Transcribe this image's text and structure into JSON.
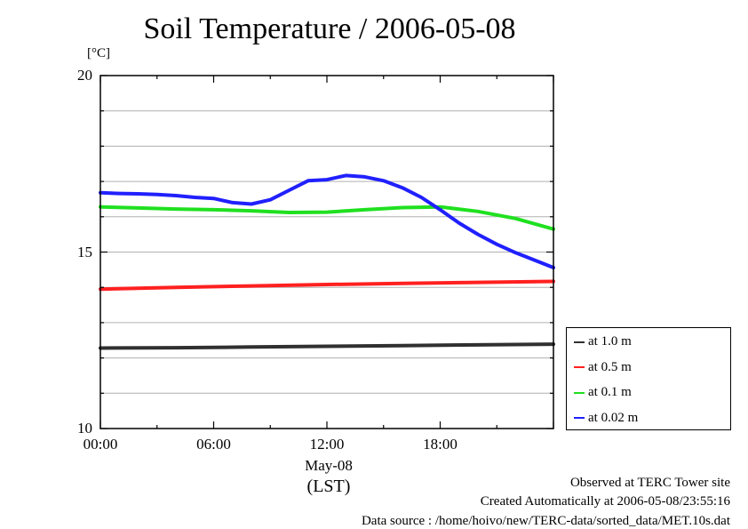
{
  "chart_data": {
    "type": "line",
    "title": "Soil Temperature / 2006-05-08",
    "ylabel": "[°C]",
    "xlabel": "(LST)",
    "date_label": "May-08",
    "ylim": [
      10,
      20
    ],
    "xlim": [
      0,
      24
    ],
    "y_ticks": [
      {
        "value": 10,
        "label": "10"
      },
      {
        "value": 15,
        "label": "15"
      },
      {
        "value": 20,
        "label": "20"
      }
    ],
    "y_grid": [
      11,
      12,
      13,
      14,
      16,
      17,
      18,
      19
    ],
    "x_ticks": [
      {
        "value": 0,
        "label": "00:00"
      },
      {
        "value": 6,
        "label": "06:00"
      },
      {
        "value": 12,
        "label": "12:00"
      },
      {
        "value": 18,
        "label": "18:00"
      }
    ],
    "grid": true,
    "legend_position": "right",
    "series": [
      {
        "name": "at 1.0 m",
        "color": "#303030",
        "x": [
          0,
          4,
          8,
          12,
          16,
          20,
          24
        ],
        "y": [
          12.28,
          12.29,
          12.31,
          12.33,
          12.35,
          12.37,
          12.39
        ]
      },
      {
        "name": "at 0.5 m",
        "color": "#ff2020",
        "x": [
          0,
          4,
          8,
          12,
          16,
          20,
          24
        ],
        "y": [
          13.95,
          14.0,
          14.04,
          14.08,
          14.11,
          14.14,
          14.17
        ]
      },
      {
        "name": "at 0.1 m",
        "color": "#20e020",
        "x": [
          0,
          2,
          4,
          6,
          8,
          10,
          12,
          14,
          16,
          18,
          20,
          22,
          24
        ],
        "y": [
          16.28,
          16.25,
          16.22,
          16.2,
          16.17,
          16.12,
          16.13,
          16.2,
          16.26,
          16.28,
          16.15,
          15.95,
          15.65
        ]
      },
      {
        "name": "at 0.02 m",
        "color": "#2020ff",
        "x": [
          0,
          1,
          2,
          3,
          4,
          5,
          6,
          7,
          8,
          9,
          10,
          11,
          12,
          13,
          14,
          15,
          16,
          17,
          18,
          19,
          20,
          21,
          22,
          23,
          24
        ],
        "y": [
          16.68,
          16.66,
          16.65,
          16.63,
          16.6,
          16.55,
          16.52,
          16.4,
          16.36,
          16.48,
          16.75,
          17.02,
          17.05,
          17.17,
          17.13,
          17.02,
          16.82,
          16.55,
          16.2,
          15.82,
          15.5,
          15.22,
          14.98,
          14.77,
          14.56
        ]
      }
    ]
  },
  "footer": {
    "observed": "Observed at TERC Tower site",
    "created": "Created Automatically at 2006-05-08/23:55:16",
    "source": "Data source : /home/hoivo/new/TERC-data/sorted_data/MET.10s.dat"
  }
}
